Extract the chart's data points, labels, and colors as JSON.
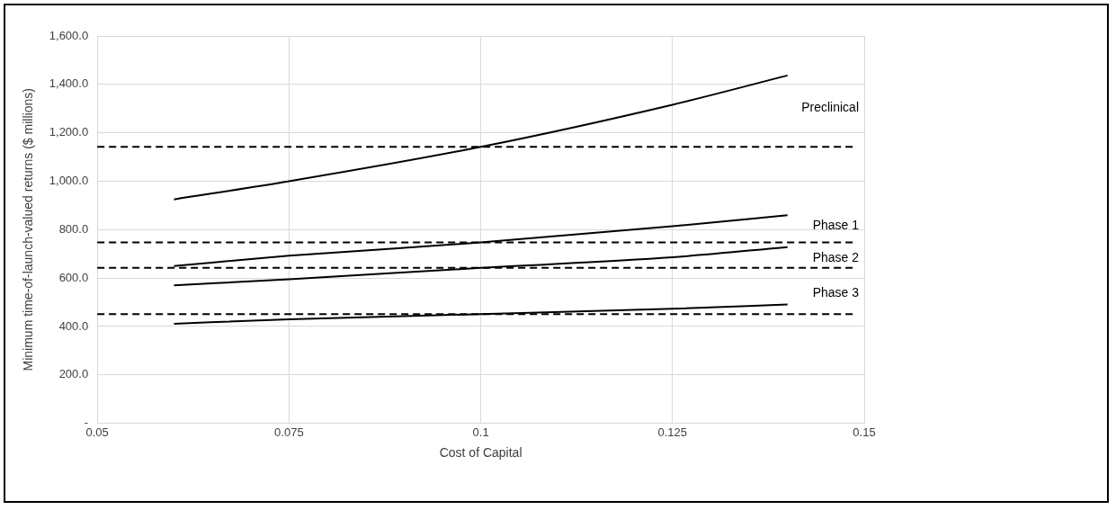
{
  "chart_data": {
    "type": "line",
    "xlabel": "Cost of Capital",
    "ylabel": "Minimum time-of-launch-valued returns ($ millions)",
    "xlim": [
      0.05,
      0.15
    ],
    "xticks": [
      0.05,
      0.075,
      0.1,
      0.125,
      0.15
    ],
    "ylim": [
      0,
      1600
    ],
    "yticks": [
      {
        "value": 0,
        "label": "-"
      },
      {
        "value": 200,
        "label": "200.0"
      },
      {
        "value": 400,
        "label": "400.0"
      },
      {
        "value": 600,
        "label": "600.0"
      },
      {
        "value": 800,
        "label": "800.0"
      },
      {
        "value": 1000,
        "label": "1,000.0"
      },
      {
        "value": 1200,
        "label": "1,200.0"
      },
      {
        "value": 1400,
        "label": "1,400.0"
      },
      {
        "value": 1600,
        "label": "1,600.0"
      }
    ],
    "grid": true,
    "legend": false,
    "marker": "none",
    "line_style": "solid",
    "x": [
      0.06,
      0.075,
      0.1,
      0.125,
      0.14
    ],
    "series": [
      {
        "name": "Preclinical",
        "color": "#000000",
        "values": [
          925,
          1000,
          1142,
          1316,
          1437
        ]
      },
      {
        "name": "Phase 1",
        "color": "#000000",
        "values": [
          650,
          692,
          747,
          814,
          860
        ]
      },
      {
        "name": "Phase 2",
        "color": "#000000",
        "values": [
          570,
          595,
          642,
          686,
          728
        ]
      },
      {
        "name": "Phase 3",
        "color": "#000000",
        "values": [
          411,
          430,
          451,
          473,
          491
        ]
      }
    ],
    "ref_lines": [
      {
        "axis": "y",
        "value": 1142,
        "color": "#000000",
        "line_style": "dashed"
      },
      {
        "axis": "y",
        "value": 747,
        "color": "#000000",
        "line_style": "dashed"
      },
      {
        "axis": "y",
        "value": 642,
        "color": "#000000",
        "line_style": "dashed"
      },
      {
        "axis": "y",
        "value": 451,
        "color": "#000000",
        "line_style": "dashed"
      }
    ]
  }
}
